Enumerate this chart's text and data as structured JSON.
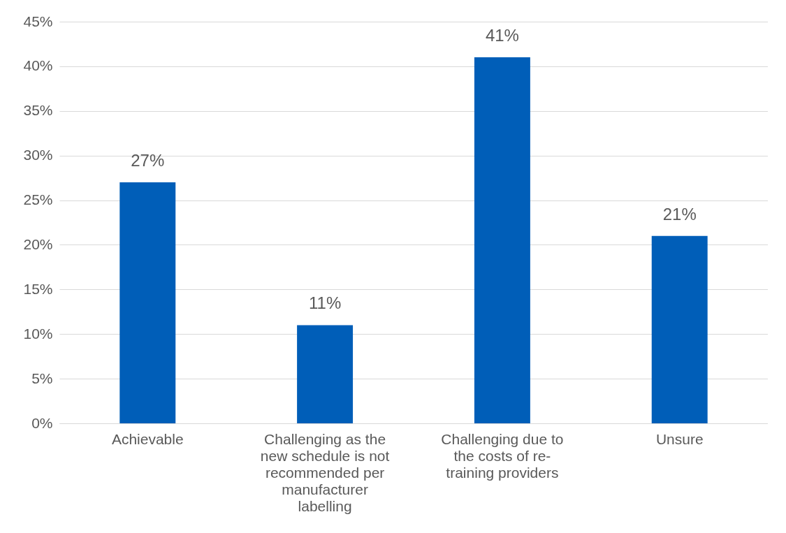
{
  "chart_data": {
    "type": "bar",
    "categories": [
      "Achievable",
      "Challenging as the new schedule is not recommended per manufacturer labelling",
      "Challenging due to the costs of re-training providers",
      "Unsure"
    ],
    "values": [
      27,
      11,
      41,
      21
    ],
    "value_labels": [
      "27%",
      "11%",
      "41%",
      "21%"
    ],
    "color": "#005eb8",
    "ylim": [
      0,
      45
    ],
    "yticks": [
      {
        "value": 0,
        "label": "0%"
      },
      {
        "value": 5,
        "label": "5%"
      },
      {
        "value": 10,
        "label": "10%"
      },
      {
        "value": 15,
        "label": "15%"
      },
      {
        "value": 20,
        "label": "20%"
      },
      {
        "value": 25,
        "label": "25%"
      },
      {
        "value": 30,
        "label": "30%"
      },
      {
        "value": 35,
        "label": "35%"
      },
      {
        "value": 40,
        "label": "40%"
      },
      {
        "value": 45,
        "label": "45%"
      }
    ],
    "grid": "y"
  }
}
